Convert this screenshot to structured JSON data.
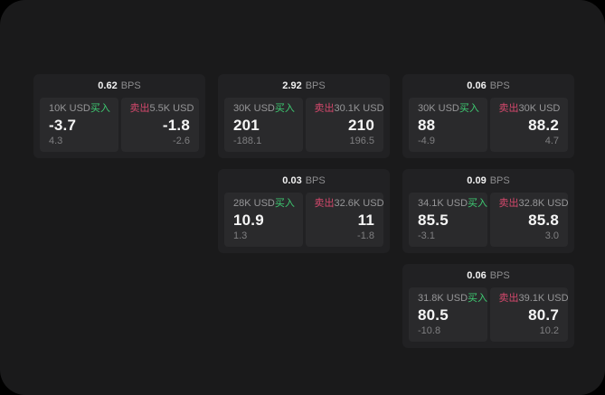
{
  "colors": {
    "buy_green": "#3ecb72",
    "sell_red": "#d4486c",
    "panel_background": "#1a1a1b",
    "card_background": "#212123",
    "tile_background": "#2a2a2c"
  },
  "cards": [
    {
      "layout": {
        "row": 1,
        "col": 1
      },
      "bps_value": "0.62",
      "bps_label": "BPS",
      "buy": {
        "amount": "10K USD",
        "side_label": "买入",
        "price": "-3.7",
        "delta": "4.3"
      },
      "sell": {
        "amount": "5.5K USD",
        "side_label": "卖出",
        "price": "-1.8",
        "delta": "-2.6"
      }
    },
    {
      "layout": {
        "row": 1,
        "col": 2
      },
      "bps_value": "2.92",
      "bps_label": "BPS",
      "buy": {
        "amount": "30K USD",
        "side_label": "买入",
        "price": "201",
        "delta": "-188.1"
      },
      "sell": {
        "amount": "30.1K USD",
        "side_label": "卖出",
        "price": "210",
        "delta": "196.5"
      }
    },
    {
      "layout": {
        "row": 1,
        "col": 3
      },
      "bps_value": "0.06",
      "bps_label": "BPS",
      "buy": {
        "amount": "30K USD",
        "side_label": "买入",
        "price": "88",
        "delta": "-4.9"
      },
      "sell": {
        "amount": "30K USD",
        "side_label": "卖出",
        "price": "88.2",
        "delta": "4.7"
      }
    },
    {
      "layout": {
        "row": 2,
        "col": 2
      },
      "bps_value": "0.03",
      "bps_label": "BPS",
      "buy": {
        "amount": "28K USD",
        "side_label": "买入",
        "price": "10.9",
        "delta": "1.3"
      },
      "sell": {
        "amount": "32.6K USD",
        "side_label": "卖出",
        "price": "11",
        "delta": "-1.8"
      }
    },
    {
      "layout": {
        "row": 2,
        "col": 3
      },
      "bps_value": "0.09",
      "bps_label": "BPS",
      "buy": {
        "amount": "34.1K USD",
        "side_label": "买入",
        "price": "85.5",
        "delta": "-3.1"
      },
      "sell": {
        "amount": "32.8K USD",
        "side_label": "卖出",
        "price": "85.8",
        "delta": "3.0"
      }
    },
    {
      "layout": {
        "row": 3,
        "col": 3
      },
      "bps_value": "0.06",
      "bps_label": "BPS",
      "buy": {
        "amount": "31.8K USD",
        "side_label": "买入",
        "price": "80.5",
        "delta": "-10.8"
      },
      "sell": {
        "amount": "39.1K USD",
        "side_label": "卖出",
        "price": "80.7",
        "delta": "10.2"
      }
    }
  ]
}
